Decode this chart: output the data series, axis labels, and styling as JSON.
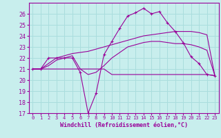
{
  "background_color": "#c8eeed",
  "grid_color": "#aadddd",
  "line_color": "#990099",
  "xlabel": "Windchill (Refroidissement éolien,°C)",
  "xlim": [
    -0.5,
    23.5
  ],
  "ylim": [
    17,
    27
  ],
  "yticks": [
    17,
    18,
    19,
    20,
    21,
    22,
    23,
    24,
    25,
    26
  ],
  "xticks": [
    0,
    1,
    2,
    3,
    4,
    5,
    6,
    7,
    8,
    9,
    10,
    11,
    12,
    13,
    14,
    15,
    16,
    17,
    18,
    19,
    20,
    21,
    22,
    23
  ],
  "series": [
    {
      "x": [
        0,
        1,
        2,
        3,
        4,
        5,
        6,
        7,
        8,
        9,
        10,
        11,
        12,
        13,
        14,
        15,
        16,
        17,
        18,
        19,
        20,
        21,
        22,
        23
      ],
      "y": [
        21.0,
        21.0,
        22.0,
        22.0,
        22.0,
        22.0,
        20.7,
        17.0,
        18.8,
        22.3,
        23.5,
        24.7,
        25.8,
        26.1,
        26.5,
        26.0,
        26.2,
        25.2,
        24.4,
        23.4,
        22.1,
        21.5,
        20.5,
        20.4
      ],
      "marker": "+"
    },
    {
      "x": [
        0,
        1,
        2,
        3,
        4,
        5,
        6,
        7,
        8,
        9,
        10,
        11,
        12,
        13,
        14,
        15,
        16,
        17,
        18,
        19,
        20,
        21,
        22,
        23
      ],
      "y": [
        21.0,
        21.0,
        21.5,
        22.0,
        22.2,
        22.4,
        22.5,
        22.6,
        22.8,
        23.0,
        23.2,
        23.4,
        23.6,
        23.8,
        24.0,
        24.1,
        24.2,
        24.3,
        24.4,
        24.4,
        24.4,
        24.3,
        24.1,
        20.4
      ],
      "marker": null
    },
    {
      "x": [
        0,
        1,
        2,
        3,
        4,
        5,
        6,
        7,
        8,
        9,
        10,
        11,
        12,
        13,
        14,
        15,
        16,
        17,
        18,
        19,
        20,
        21,
        22,
        23
      ],
      "y": [
        21.0,
        21.0,
        21.3,
        21.8,
        22.0,
        22.2,
        21.0,
        20.5,
        20.7,
        21.3,
        22.0,
        22.5,
        23.0,
        23.2,
        23.4,
        23.5,
        23.5,
        23.4,
        23.3,
        23.3,
        23.2,
        23.0,
        22.7,
        20.4
      ],
      "marker": null
    },
    {
      "x": [
        0,
        1,
        2,
        3,
        4,
        5,
        6,
        7,
        8,
        9,
        10,
        11,
        12,
        13,
        14,
        15,
        16,
        17,
        18,
        19,
        20,
        21,
        22,
        23
      ],
      "y": [
        21.0,
        21.0,
        21.0,
        21.0,
        21.0,
        21.0,
        21.0,
        21.0,
        21.0,
        21.0,
        20.5,
        20.5,
        20.5,
        20.5,
        20.5,
        20.5,
        20.5,
        20.5,
        20.5,
        20.5,
        20.5,
        20.5,
        20.5,
        20.4
      ],
      "marker": null
    }
  ]
}
